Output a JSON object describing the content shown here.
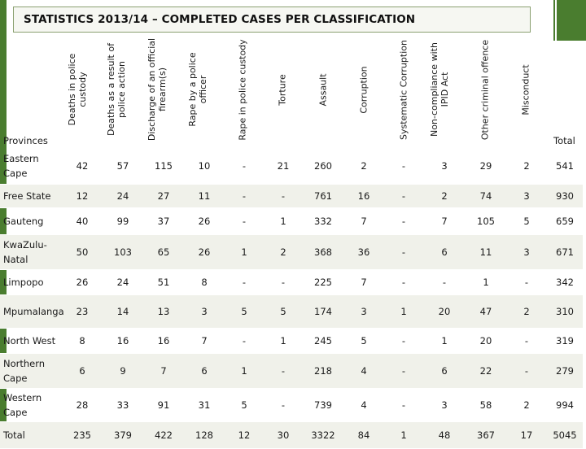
{
  "title": "STATISTICS 2013/14 – COMPLETED CASES PER CLASSIFICATION",
  "provinces_label": "Provinces",
  "total_label": "Total",
  "columns": [
    "Deaths in police custody",
    "Deaths as a result of police action",
    "Discharge of an official firearm(s)",
    "Rape by a police officer",
    "Rape in police custody",
    "Torture",
    "Assault",
    "Corruption",
    "Systematic Corruption",
    "Non-compliance with IPID Act",
    "Other criminal offence",
    "Misconduct"
  ],
  "rows": [
    {
      "province": "Eastern Cape",
      "values": [
        "42",
        "57",
        "115",
        "10",
        "-",
        "21",
        "260",
        "2",
        "-",
        "3",
        "29",
        "2"
      ],
      "total": "541"
    },
    {
      "province": "Free State",
      "values": [
        "12",
        "24",
        "27",
        "11",
        "-",
        "-",
        "761",
        "16",
        "-",
        "2",
        "74",
        "3"
      ],
      "total": "930"
    },
    {
      "province": "Gauteng",
      "values": [
        "40",
        "99",
        "37",
        "26",
        "-",
        "1",
        "332",
        "7",
        "-",
        "7",
        "105",
        "5"
      ],
      "total": "659"
    },
    {
      "province": "KwaZulu-Natal",
      "values": [
        "50",
        "103",
        "65",
        "26",
        "1",
        "2",
        "368",
        "36",
        "-",
        "6",
        "11",
        "3"
      ],
      "total": "671"
    },
    {
      "province": "Limpopo",
      "values": [
        "26",
        "24",
        "51",
        "8",
        "-",
        "-",
        "225",
        "7",
        "-",
        "-",
        "1",
        "-"
      ],
      "total": "342"
    },
    {
      "province": "Mpumalanga",
      "values": [
        "23",
        "14",
        "13",
        "3",
        "5",
        "5",
        "174",
        "3",
        "1",
        "20",
        "47",
        "2"
      ],
      "total": "310"
    },
    {
      "province": "North West",
      "values": [
        "8",
        "16",
        "16",
        "7",
        "-",
        "1",
        "245",
        "5",
        "-",
        "1",
        "20",
        "-"
      ],
      "total": "319"
    },
    {
      "province": "Northern Cape",
      "values": [
        "6",
        "9",
        "7",
        "6",
        "1",
        "-",
        "218",
        "4",
        "-",
        "6",
        "22",
        "-"
      ],
      "total": "279"
    },
    {
      "province": "Western Cape",
      "values": [
        "28",
        "33",
        "91",
        "31",
        "5",
        "-",
        "739",
        "4",
        "-",
        "3",
        "58",
        "2"
      ],
      "total": "994"
    },
    {
      "province": "Total",
      "values": [
        "235",
        "379",
        "422",
        "128",
        "12",
        "30",
        "3322",
        "84",
        "1",
        "48",
        "367",
        "17"
      ],
      "total": "5045"
    }
  ],
  "colors": {
    "accent": "#4a7d2f",
    "shade": "#f0f1ea"
  }
}
